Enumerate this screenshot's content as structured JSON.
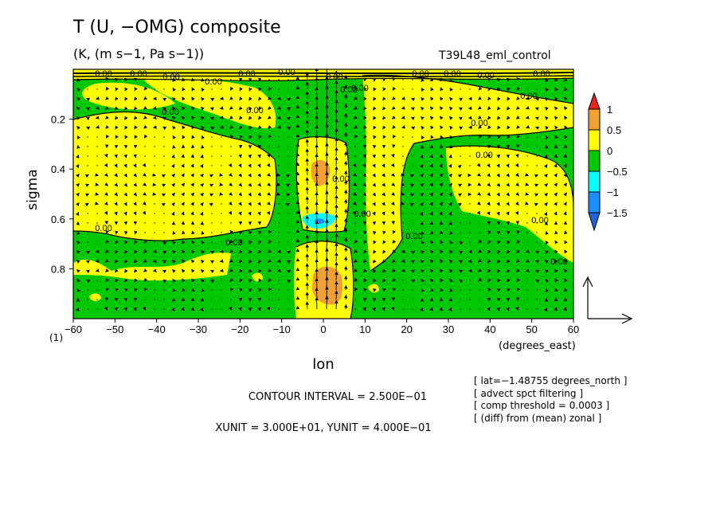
{
  "header": {
    "title": "T (U, −OMG) composite",
    "units": "(K, (m s−1, Pa s−1))",
    "run_name": "T39L48_eml_control"
  },
  "chart_data": {
    "type": "heatmap",
    "subtype": "filled contour with vector overlay",
    "title": "T (U, −OMG) composite",
    "xlabel": "lon",
    "xunits": "(degrees_east)",
    "ylabel": "sigma",
    "xlim": [
      -60,
      60
    ],
    "ylim": [
      1.0,
      0.0
    ],
    "x_ticks": [
      -60,
      -50,
      -40,
      -30,
      -20,
      -10,
      0,
      10,
      20,
      30,
      40,
      50,
      60
    ],
    "x_tick_labels": [
      "−60",
      "−50",
      "−40",
      "−30",
      "−20",
      "−10",
      "0",
      "10",
      "20",
      "30",
      "40",
      "50",
      "60"
    ],
    "y_ticks": [
      0.2,
      0.4,
      0.6,
      0.8
    ],
    "y_tick_labels": [
      "0.2",
      "0.4",
      "0.6",
      "0.8"
    ],
    "x_corner_label": "(1)",
    "contour_label": "0.00",
    "colorbar": {
      "levels": [
        "1",
        "0.5",
        "0",
        "−0.5",
        "−1",
        "−1.5"
      ],
      "colors": [
        "#e8221c",
        "#f2a033",
        "#ffff00",
        "#00c800",
        "#00ffff",
        "#1e8cff",
        "#1e64dc"
      ]
    },
    "contour_interval": "CONTOUR INTERVAL = 2.500E−01",
    "vector_units": "XUNIT = 3.000E+01, YUNIT = 4.000E−01",
    "notes": [
      "[ lat=−1.48755 degrees_north ]",
      "[ advect spct filtering ]",
      "[ comp threshold = 0.0003 ]",
      "[ (diff) from (mean) zonal ]"
    ]
  }
}
